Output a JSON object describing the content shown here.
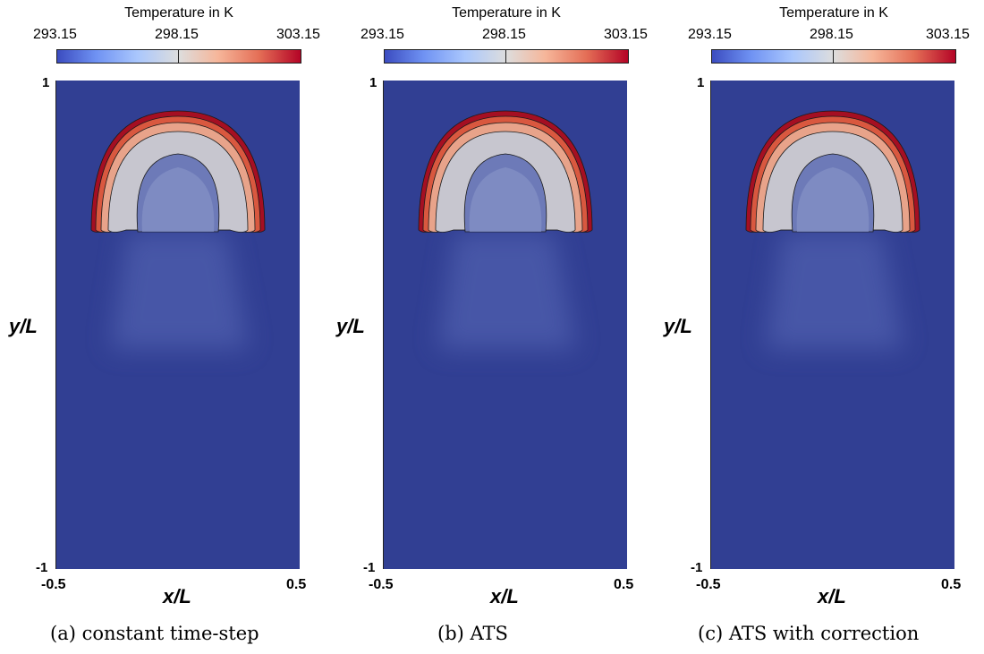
{
  "colorbar": {
    "title": "Temperature in K",
    "min_label": "293.15",
    "mid_label": "298.15",
    "max_label": "303.15",
    "colormap": "Cool to Warm",
    "low_color": "#3b4cc0",
    "mid_color": "#dddddd",
    "high_color": "#b40426"
  },
  "axes": {
    "xlabel": "x/L",
    "ylabel": "y/L",
    "x_min_label": "-0.5",
    "x_max_label": "0.5",
    "y_min_label": "-1",
    "y_max_label": "1"
  },
  "panels": [
    {
      "caption": "(a) constant time-step"
    },
    {
      "caption": "(b) ATS"
    },
    {
      "caption": "(c) ATS with correction"
    }
  ]
}
